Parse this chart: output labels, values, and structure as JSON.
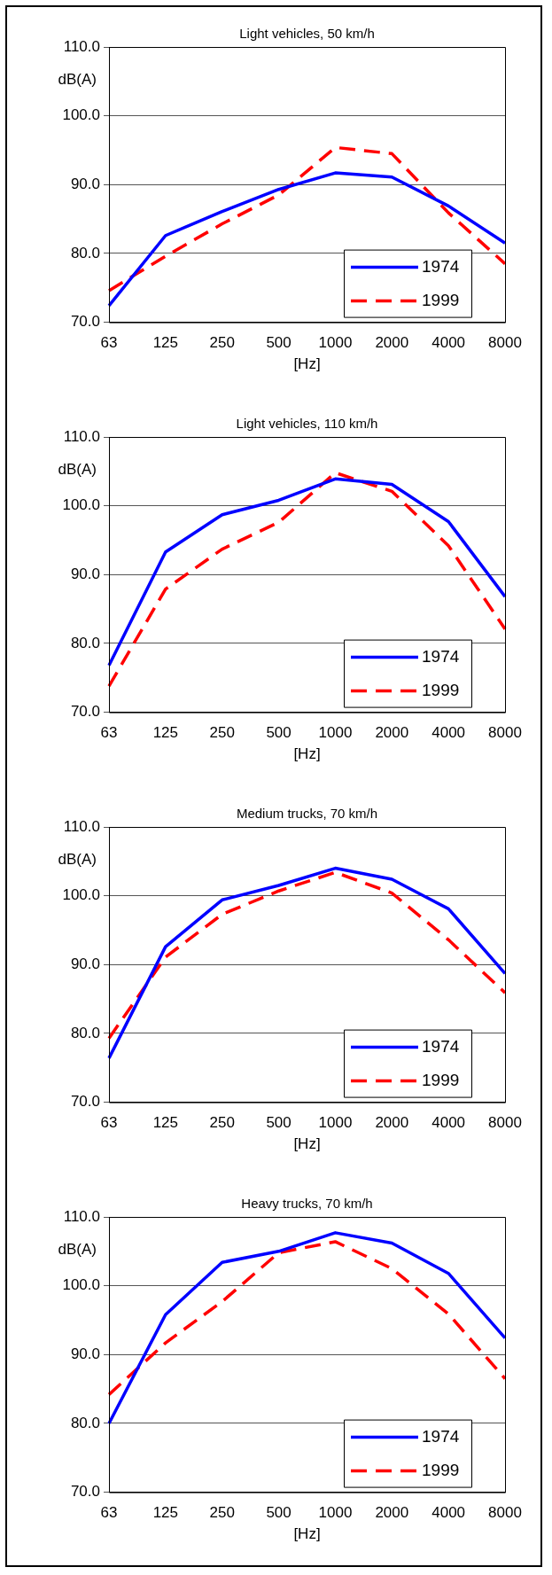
{
  "chart_data": [
    {
      "type": "line",
      "title": "Light vehicles, 50 km/h",
      "xlabel": "[Hz]",
      "ylabel": "dB(A)",
      "categories": [
        "63",
        "125",
        "250",
        "500",
        "1000",
        "2000",
        "4000",
        "8000"
      ],
      "ylim": [
        70,
        110
      ],
      "yticks": [
        {
          "value": 70,
          "label": "70.0"
        },
        {
          "value": 80,
          "label": "80.0"
        },
        {
          "value": 90,
          "label": "90.0"
        },
        {
          "value": 100,
          "label": "100.0"
        },
        {
          "value": 110,
          "label": "110.0"
        }
      ],
      "grid": "y",
      "legend": "bottom right",
      "marker": "none",
      "series": [
        {
          "name": "1974",
          "color": "#0000ff",
          "line_style": "solid",
          "values": [
            72.4,
            82.6,
            86.1,
            89.3,
            91.7,
            91.1,
            86.9,
            81.5
          ]
        },
        {
          "name": "1999",
          "color": "#ff0000",
          "line_style": "dashed",
          "values": [
            74.6,
            79.6,
            84.3,
            88.5,
            95.4,
            94.5,
            85.9,
            78.5
          ]
        }
      ]
    },
    {
      "type": "line",
      "title": "Light vehicles, 110 km/h",
      "xlabel": "[Hz]",
      "ylabel": "dB(A)",
      "categories": [
        "63",
        "125",
        "250",
        "500",
        "1000",
        "2000",
        "4000",
        "8000"
      ],
      "ylim": [
        70,
        110
      ],
      "yticks": [
        {
          "value": 70,
          "label": "70.0"
        },
        {
          "value": 80,
          "label": "80.0"
        },
        {
          "value": 90,
          "label": "90.0"
        },
        {
          "value": 100,
          "label": "100.0"
        },
        {
          "value": 110,
          "label": "110.0"
        }
      ],
      "grid": "y",
      "legend": "bottom right",
      "marker": "none",
      "series": [
        {
          "name": "1974",
          "color": "#0000ff",
          "line_style": "solid",
          "values": [
            76.8,
            93.3,
            98.7,
            100.8,
            103.9,
            103.1,
            97.7,
            86.8
          ]
        },
        {
          "name": "1999",
          "color": "#ff0000",
          "line_style": "dashed",
          "values": [
            73.8,
            87.9,
            93.7,
            97.6,
            104.8,
            102.1,
            94.2,
            82.1
          ]
        }
      ]
    },
    {
      "type": "line",
      "title": "Medium trucks, 70 km/h",
      "xlabel": "[Hz]",
      "ylabel": "dB(A)",
      "categories": [
        "63",
        "125",
        "250",
        "500",
        "1000",
        "2000",
        "4000",
        "8000"
      ],
      "ylim": [
        70,
        110
      ],
      "yticks": [
        {
          "value": 70,
          "label": "70.0"
        },
        {
          "value": 80,
          "label": "80.0"
        },
        {
          "value": 90,
          "label": "90.0"
        },
        {
          "value": 100,
          "label": "100.0"
        },
        {
          "value": 110,
          "label": "110.0"
        }
      ],
      "grid": "y",
      "legend": "bottom right",
      "marker": "none",
      "series": [
        {
          "name": "1974",
          "color": "#0000ff",
          "line_style": "solid",
          "values": [
            76.4,
            92.6,
            99.4,
            101.5,
            104.0,
            102.4,
            98.1,
            88.7
          ]
        },
        {
          "name": "1999",
          "color": "#ff0000",
          "line_style": "dashed",
          "values": [
            79.3,
            91.1,
            97.3,
            100.7,
            103.4,
            100.4,
            93.6,
            85.9
          ]
        }
      ]
    },
    {
      "type": "line",
      "title": "Heavy trucks, 70 km/h",
      "xlabel": "[Hz]",
      "ylabel": "dB(A)",
      "categories": [
        "63",
        "125",
        "250",
        "500",
        "1000",
        "2000",
        "4000",
        "8000"
      ],
      "ylim": [
        70,
        110
      ],
      "yticks": [
        {
          "value": 70,
          "label": "70.0"
        },
        {
          "value": 80,
          "label": "80.0"
        },
        {
          "value": 90,
          "label": "90.0"
        },
        {
          "value": 100,
          "label": "100.0"
        },
        {
          "value": 110,
          "label": "110.0"
        }
      ],
      "grid": "y",
      "legend": "bottom right",
      "marker": "none",
      "series": [
        {
          "name": "1974",
          "color": "#0000ff",
          "line_style": "solid",
          "values": [
            80.0,
            95.8,
            103.4,
            105.0,
            107.7,
            106.2,
            101.8,
            92.4
          ]
        },
        {
          "name": "1999",
          "color": "#ff0000",
          "line_style": "dashed",
          "values": [
            84.2,
            91.7,
            97.7,
            104.8,
            106.4,
            102.5,
            95.9,
            86.5
          ]
        }
      ]
    }
  ]
}
